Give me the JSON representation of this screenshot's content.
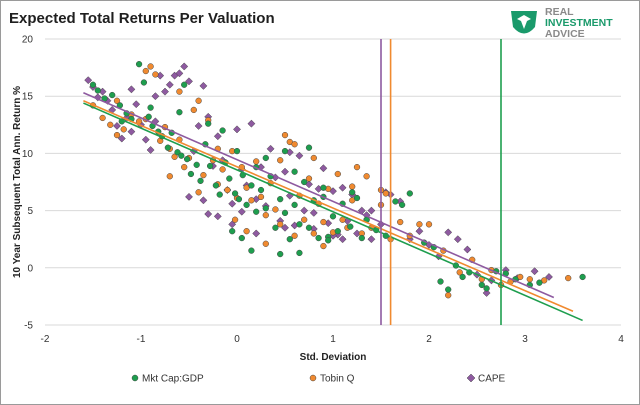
{
  "header": {
    "title": "Expected Total Returns Per Valuation"
  },
  "logo": {
    "line1": "REAL",
    "line2": "INVESTMENT",
    "line3": "ADVICE"
  },
  "colors": {
    "mkt": "#1e9e4e",
    "tobin": "#f08a30",
    "cape": "#8e5aa0",
    "marker_edge": "#444444",
    "grid": "#d9d9d9"
  },
  "chart_data": {
    "type": "scatter",
    "title": "Expected Total Returns Per Valuation",
    "xlabel": "Std. Deviation",
    "ylabel": "10 Year Subsequent Total Ann. Return %",
    "xlim": [
      -2,
      4
    ],
    "ylim": [
      -5,
      20
    ],
    "xticks": [
      -2,
      -1,
      0,
      1,
      2,
      3,
      4
    ],
    "yticks": [
      -5,
      0,
      5,
      10,
      15,
      20
    ],
    "grid": "horizontal",
    "legend_position": "bottom",
    "series": [
      {
        "name": "Mkt Cap:GDP",
        "marker": "circle",
        "color_key": "mkt",
        "trendline": {
          "x": [
            -1.6,
            3.6
          ],
          "y": [
            14.4,
            -4.6
          ]
        },
        "vline": 2.75,
        "points": [
          [
            -1.5,
            16.0
          ],
          [
            -1.45,
            15.5
          ],
          [
            -1.38,
            14.8
          ],
          [
            -1.3,
            15.1
          ],
          [
            -1.22,
            14.2
          ],
          [
            -1.15,
            13.5
          ],
          [
            -1.1,
            13.0
          ],
          [
            -1.02,
            17.8
          ],
          [
            -0.97,
            16.2
          ],
          [
            -0.92,
            13.2
          ],
          [
            -0.88,
            12.4
          ],
          [
            -0.82,
            11.9
          ],
          [
            -0.78,
            11.5
          ],
          [
            -0.72,
            10.5
          ],
          [
            -0.68,
            11.8
          ],
          [
            -0.62,
            10.1
          ],
          [
            -0.58,
            9.8
          ],
          [
            -0.52,
            9.5
          ],
          [
            -0.48,
            8.2
          ],
          [
            -0.42,
            9.0
          ],
          [
            -0.38,
            7.6
          ],
          [
            -0.33,
            10.8
          ],
          [
            -0.28,
            8.9
          ],
          [
            -0.22,
            7.2
          ],
          [
            -0.18,
            6.4
          ],
          [
            -0.12,
            9.2
          ],
          [
            -0.08,
            7.8
          ],
          [
            -0.02,
            6.5
          ],
          [
            0.02,
            6.0
          ],
          [
            0.06,
            8.1
          ],
          [
            0.1,
            5.5
          ],
          [
            0.15,
            7.2
          ],
          [
            0.2,
            4.9
          ],
          [
            0.25,
            6.8
          ],
          [
            0.3,
            5.2
          ],
          [
            0.35,
            8.0
          ],
          [
            0.4,
            3.5
          ],
          [
            0.45,
            6.0
          ],
          [
            0.5,
            4.8
          ],
          [
            0.55,
            2.5
          ],
          [
            0.6,
            5.5
          ],
          [
            0.65,
            3.8
          ],
          [
            0.7,
            7.5
          ],
          [
            0.75,
            3.5
          ],
          [
            0.8,
            5.9
          ],
          [
            0.85,
            2.6
          ],
          [
            0.9,
            6.2
          ],
          [
            0.95,
            2.7
          ],
          [
            1.0,
            4.5
          ],
          [
            1.05,
            3.2
          ],
          [
            1.1,
            5.6
          ],
          [
            1.18,
            3.6
          ],
          [
            1.25,
            6.1
          ],
          [
            1.35,
            4.2
          ],
          [
            1.45,
            3.3
          ],
          [
            1.55,
            2.8
          ],
          [
            1.65,
            5.8
          ],
          [
            1.72,
            5.5
          ],
          [
            1.8,
            6.5
          ],
          [
            1.95,
            2.2
          ],
          [
            2.05,
            1.8
          ],
          [
            2.12,
            -1.2
          ],
          [
            2.2,
            -1.9
          ],
          [
            2.28,
            0.2
          ],
          [
            2.35,
            -0.8
          ],
          [
            2.42,
            -0.4
          ],
          [
            2.55,
            -1.5
          ],
          [
            2.6,
            -1.8
          ],
          [
            2.7,
            -0.3
          ],
          [
            2.8,
            -0.5
          ],
          [
            2.9,
            -1.0
          ],
          [
            3.05,
            -1.5
          ],
          [
            3.15,
            -1.3
          ],
          [
            3.6,
            -0.8
          ],
          [
            -1.2,
            12.8
          ],
          [
            -0.9,
            14.0
          ],
          [
            -0.6,
            13.6
          ],
          [
            -0.3,
            12.6
          ],
          [
            0.0,
            10.2
          ],
          [
            0.3,
            9.6
          ],
          [
            0.6,
            8.4
          ],
          [
            0.9,
            7.0
          ],
          [
            1.2,
            6.6
          ],
          [
            -0.55,
            16.0
          ],
          [
            -0.15,
            12.0
          ],
          [
            0.2,
            8.8
          ],
          [
            0.5,
            10.2
          ],
          [
            0.75,
            10.5
          ],
          [
            0.15,
            1.5
          ],
          [
            0.45,
            1.2
          ],
          [
            0.65,
            1.3
          ],
          [
            0.95,
            2.4
          ],
          [
            1.3,
            2.6
          ],
          [
            -0.05,
            3.2
          ],
          [
            0.05,
            2.6
          ]
        ]
      },
      {
        "name": "Tobin Q",
        "marker": "circle",
        "color_key": "tobin",
        "trendline": {
          "x": [
            -1.6,
            3.5
          ],
          "y": [
            14.6,
            -3.8
          ]
        },
        "vline": 1.6,
        "points": [
          [
            -1.5,
            14.2
          ],
          [
            -1.4,
            13.1
          ],
          [
            -1.32,
            12.5
          ],
          [
            -1.25,
            14.6
          ],
          [
            -1.18,
            12.1
          ],
          [
            -1.1,
            13.4
          ],
          [
            -1.02,
            12.8
          ],
          [
            -0.95,
            17.2
          ],
          [
            -0.9,
            17.6
          ],
          [
            -0.85,
            16.9
          ],
          [
            -0.8,
            11.1
          ],
          [
            -0.75,
            12.3
          ],
          [
            -0.7,
            10.4
          ],
          [
            -0.65,
            9.7
          ],
          [
            -0.6,
            11.2
          ],
          [
            -0.55,
            8.8
          ],
          [
            -0.5,
            9.6
          ],
          [
            -0.45,
            13.8
          ],
          [
            -0.4,
            14.6
          ],
          [
            -0.35,
            8.1
          ],
          [
            -0.3,
            12.9
          ],
          [
            -0.25,
            9.4
          ],
          [
            -0.2,
            7.3
          ],
          [
            -0.15,
            8.6
          ],
          [
            -0.1,
            6.8
          ],
          [
            -0.05,
            10.2
          ],
          [
            0.0,
            6.1
          ],
          [
            0.05,
            8.8
          ],
          [
            0.1,
            7.0
          ],
          [
            0.15,
            5.9
          ],
          [
            0.2,
            9.3
          ],
          [
            0.25,
            6.2
          ],
          [
            0.3,
            4.6
          ],
          [
            0.35,
            7.4
          ],
          [
            0.4,
            5.1
          ],
          [
            0.45,
            3.8
          ],
          [
            0.5,
            11.6
          ],
          [
            0.55,
            11.0
          ],
          [
            0.6,
            10.8
          ],
          [
            0.65,
            6.3
          ],
          [
            0.7,
            4.2
          ],
          [
            0.75,
            7.8
          ],
          [
            0.8,
            3.0
          ],
          [
            0.85,
            5.6
          ],
          [
            0.9,
            4.0
          ],
          [
            0.95,
            6.9
          ],
          [
            1.0,
            3.1
          ],
          [
            1.05,
            8.2
          ],
          [
            1.1,
            4.2
          ],
          [
            1.15,
            3.5
          ],
          [
            1.2,
            5.9
          ],
          [
            1.25,
            8.8
          ],
          [
            1.3,
            3.0
          ],
          [
            1.35,
            4.2
          ],
          [
            1.4,
            3.5
          ],
          [
            1.5,
            6.8
          ],
          [
            1.55,
            6.5
          ],
          [
            1.6,
            2.5
          ],
          [
            1.7,
            4.0
          ],
          [
            1.8,
            2.8
          ],
          [
            1.9,
            3.8
          ],
          [
            2.0,
            3.8
          ],
          [
            2.15,
            1.5
          ],
          [
            2.2,
            -2.4
          ],
          [
            2.32,
            -0.4
          ],
          [
            2.45,
            0.7
          ],
          [
            2.55,
            -1.0
          ],
          [
            2.65,
            -0.2
          ],
          [
            2.75,
            -1.5
          ],
          [
            2.85,
            -1.2
          ],
          [
            2.95,
            -0.8
          ],
          [
            3.05,
            -1.0
          ],
          [
            3.2,
            -1.1
          ],
          [
            3.45,
            -0.9
          ],
          [
            -0.95,
            13.0
          ],
          [
            -0.6,
            15.4
          ],
          [
            -0.2,
            10.4
          ],
          [
            0.1,
            3.2
          ],
          [
            0.3,
            2.1
          ],
          [
            0.6,
            2.8
          ],
          [
            0.9,
            1.9
          ],
          [
            1.2,
            7.1
          ],
          [
            1.5,
            5.5
          ],
          [
            -0.4,
            6.6
          ],
          [
            -0.7,
            8.0
          ],
          [
            0.45,
            9.4
          ],
          [
            0.8,
            9.6
          ],
          [
            1.35,
            8.0
          ],
          [
            -1.25,
            11.6
          ],
          [
            -0.02,
            4.2
          ]
        ]
      },
      {
        "name": "CAPE",
        "marker": "diamond",
        "color_key": "cape",
        "trendline": {
          "x": [
            -1.6,
            3.3
          ],
          "y": [
            15.3,
            -2.6
          ]
        },
        "vline": 1.5,
        "points": [
          [
            -1.55,
            16.4
          ],
          [
            -1.5,
            15.8
          ],
          [
            -1.45,
            14.9
          ],
          [
            -1.4,
            15.4
          ],
          [
            -1.35,
            14.6
          ],
          [
            -1.3,
            13.8
          ],
          [
            -1.25,
            12.4
          ],
          [
            -1.2,
            11.3
          ],
          [
            -1.15,
            13.1
          ],
          [
            -1.1,
            11.9
          ],
          [
            -1.05,
            14.3
          ],
          [
            -1.0,
            12.5
          ],
          [
            -0.95,
            11.2
          ],
          [
            -0.9,
            10.3
          ],
          [
            -0.85,
            12.8
          ],
          [
            -0.8,
            16.8
          ],
          [
            -0.75,
            15.4
          ],
          [
            -0.7,
            16.0
          ],
          [
            -0.65,
            16.8
          ],
          [
            -0.6,
            17.0
          ],
          [
            -0.55,
            17.6
          ],
          [
            -0.5,
            16.3
          ],
          [
            -0.45,
            10.2
          ],
          [
            -0.4,
            12.4
          ],
          [
            -0.35,
            15.9
          ],
          [
            -0.3,
            13.2
          ],
          [
            -0.25,
            8.9
          ],
          [
            -0.2,
            11.5
          ],
          [
            -0.15,
            9.4
          ],
          [
            -0.1,
            6.8
          ],
          [
            -0.05,
            5.6
          ],
          [
            0.0,
            12.1
          ],
          [
            0.05,
            8.6
          ],
          [
            0.1,
            7.2
          ],
          [
            0.15,
            12.6
          ],
          [
            0.2,
            6.0
          ],
          [
            0.25,
            8.8
          ],
          [
            0.3,
            5.4
          ],
          [
            0.35,
            10.4
          ],
          [
            0.4,
            7.9
          ],
          [
            0.45,
            4.1
          ],
          [
            0.5,
            8.4
          ],
          [
            0.55,
            6.3
          ],
          [
            0.6,
            3.7
          ],
          [
            0.65,
            9.8
          ],
          [
            0.7,
            5.0
          ],
          [
            0.75,
            7.3
          ],
          [
            0.8,
            3.4
          ],
          [
            0.85,
            6.9
          ],
          [
            0.9,
            8.7
          ],
          [
            0.95,
            3.9
          ],
          [
            1.0,
            6.7
          ],
          [
            1.05,
            2.9
          ],
          [
            1.1,
            7.0
          ],
          [
            1.15,
            4.1
          ],
          [
            1.2,
            6.4
          ],
          [
            1.25,
            3.0
          ],
          [
            1.3,
            5.0
          ],
          [
            1.35,
            4.6
          ],
          [
            1.4,
            2.5
          ],
          [
            1.5,
            3.8
          ],
          [
            1.55,
            6.6
          ],
          [
            1.6,
            6.4
          ],
          [
            1.7,
            5.8
          ],
          [
            1.8,
            2.5
          ],
          [
            1.9,
            3.2
          ],
          [
            2.0,
            2.0
          ],
          [
            2.1,
            1.0
          ],
          [
            2.2,
            3.1
          ],
          [
            2.3,
            2.5
          ],
          [
            2.4,
            1.6
          ],
          [
            2.5,
            -0.6
          ],
          [
            2.6,
            -2.2
          ],
          [
            2.65,
            -1.1
          ],
          [
            2.8,
            -0.2
          ],
          [
            2.92,
            -0.9
          ],
          [
            3.1,
            -0.3
          ],
          [
            3.25,
            -0.8
          ],
          [
            -1.1,
            15.6
          ],
          [
            -0.85,
            15.0
          ],
          [
            -0.3,
            4.7
          ],
          [
            -0.2,
            4.5
          ],
          [
            0.05,
            4.9
          ],
          [
            0.5,
            3.5
          ],
          [
            0.8,
            4.8
          ],
          [
            1.1,
            2.5
          ],
          [
            -0.5,
            6.2
          ],
          [
            -0.05,
            3.8
          ],
          [
            0.2,
            3.0
          ],
          [
            1.0,
            2.8
          ],
          [
            -0.35,
            5.9
          ],
          [
            0.55,
            10.1
          ],
          [
            1.4,
            5.0
          ]
        ]
      }
    ]
  }
}
